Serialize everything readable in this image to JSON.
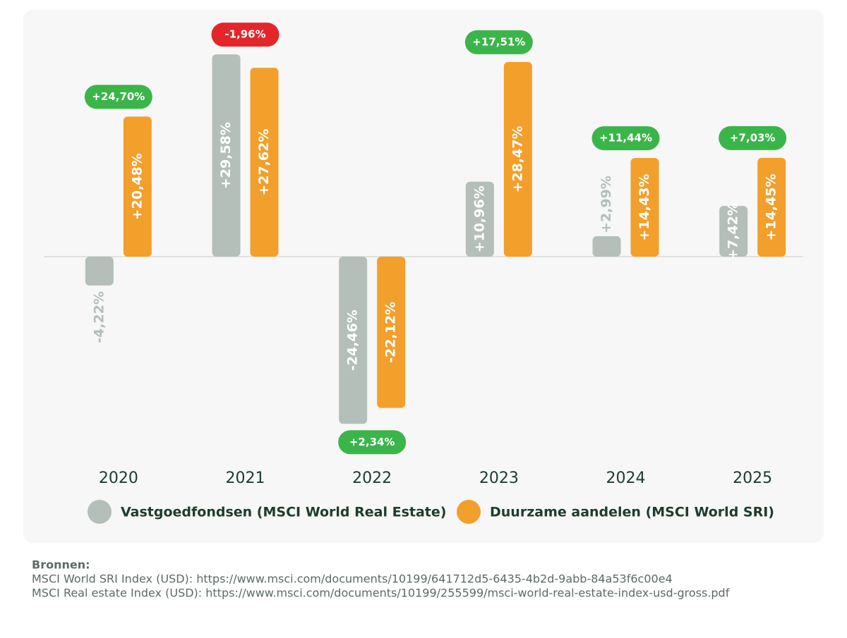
{
  "chart_data": {
    "type": "bar",
    "categories": [
      "2020",
      "2021",
      "2022",
      "2023",
      "2024",
      "2025"
    ],
    "series": [
      {
        "name": "Vastgoedfondsen (MSCI World Real Estate)",
        "color": "#b3bfb8",
        "values": [
          -4.22,
          29.58,
          -24.46,
          10.96,
          2.99,
          7.42
        ],
        "value_labels": [
          "-4,22%",
          "+29,58%",
          "-24,46%",
          "+10,96%",
          "+2,99%",
          "+7,42%"
        ]
      },
      {
        "name": "Duurzame aandelen (MSCI World SRI)",
        "color": "#f29f2b",
        "values": [
          20.48,
          27.62,
          -22.12,
          28.47,
          14.43,
          14.45
        ],
        "value_labels": [
          "+20,48%",
          "+27,62%",
          "-22,12%",
          "+28,47%",
          "+14,43%",
          "+14,45%"
        ]
      }
    ],
    "differences": {
      "values": [
        24.7,
        -1.96,
        2.34,
        17.51,
        11.44,
        7.03
      ],
      "value_labels": [
        "+24,70%",
        "-1,96%",
        "+2,34%",
        "+17,51%",
        "+11,44%",
        "+7,03%"
      ],
      "positive_color": "#3bb54a",
      "negative_color": "#e3262a"
    },
    "ylim": [
      -30,
      33
    ]
  },
  "sources": {
    "title": "Bronnen:",
    "lines": [
      "MSCI World SRI Index (USD): https://www.msci.com/documents/10199/641712d5-6435-4b2d-9abb-84a53f6c00e4",
      "MSCI Real estate Index (USD): https://www.msci.com/documents/10199/255599/msci-world-real-estate-index-usd-gross.pdf"
    ]
  }
}
